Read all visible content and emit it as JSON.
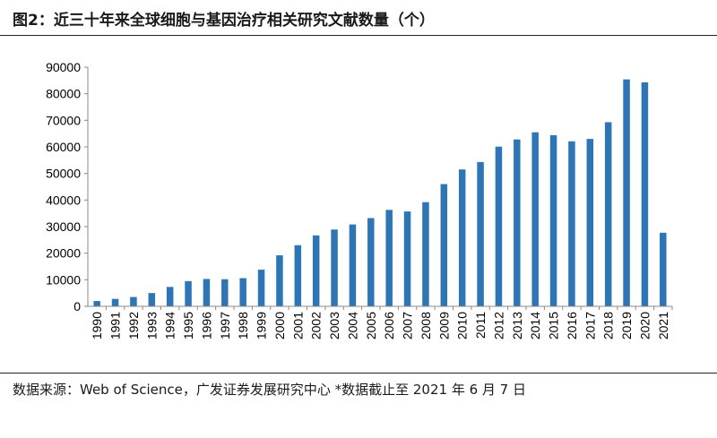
{
  "header": {
    "title": "图2：近三十年来全球细胞与基因治疗相关研究文献数量（个）"
  },
  "footer": {
    "source": "数据来源：Web of Science，广发证券发展研究中心 *数据截止至 2021 年 6 月 7 日"
  },
  "colors": {
    "bar": "#2e75b6",
    "axis": "#888888"
  },
  "chart_data": {
    "type": "bar",
    "title": "",
    "xlabel": "",
    "ylabel": "",
    "ylim": [
      0,
      90000
    ],
    "yticks": [
      0,
      10000,
      20000,
      30000,
      40000,
      50000,
      60000,
      70000,
      80000,
      90000
    ],
    "grid": false,
    "legend": "none",
    "categories": [
      "1990",
      "1991",
      "1992",
      "1993",
      "1994",
      "1995",
      "1996",
      "1997",
      "1998",
      "1999",
      "2000",
      "2001",
      "2002",
      "2003",
      "2004",
      "2005",
      "2006",
      "2007",
      "2008",
      "2009",
      "2010",
      "2011",
      "2012",
      "2013",
      "2014",
      "2015",
      "2016",
      "2017",
      "2018",
      "2019",
      "2020",
      "2021"
    ],
    "values": [
      2000,
      2800,
      3500,
      5000,
      7300,
      9500,
      10300,
      10200,
      10600,
      13800,
      19200,
      23000,
      26700,
      28900,
      30800,
      33200,
      36300,
      35700,
      39200,
      46000,
      51500,
      54300,
      60100,
      62800,
      65500,
      64400,
      62100,
      63000,
      69300,
      85400,
      84300,
      27700
    ]
  }
}
